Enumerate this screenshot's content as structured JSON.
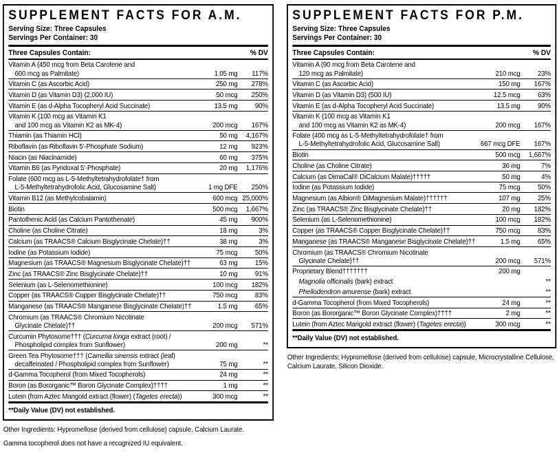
{
  "colors": {
    "ink": "#000000",
    "background": "#ffffff",
    "panel_border": "#000000"
  },
  "panels": [
    {
      "title": "SUPPLEMENT FACTS FOR A.M.",
      "serving_size": "Serving Size: Three Capsules",
      "servings_per_container": "Servings Per Container: 30",
      "contains_label": "Three Capsules Contain:",
      "dv_label": "% DV",
      "rows": [
        {
          "lines": [
            "Vitamin A (450 mcg from Beta Carotene and",
            "600 mcg as Palmitate)"
          ],
          "amount": "1.05 mg",
          "dv": "117%"
        },
        {
          "lines": [
            "Vitamin C (as Ascorbic Acid)"
          ],
          "amount": "250 mg",
          "dv": "278%"
        },
        {
          "lines": [
            "Vitamin D (as Vitamin D3) (2,000 IU)"
          ],
          "amount": "50 mcg",
          "dv": "250%"
        },
        {
          "lines": [
            "Vitamin E (as d-Alpha Tocopheryl Acid Succinate)"
          ],
          "amount": "13.5 mg",
          "dv": "90%"
        },
        {
          "lines": [
            "Vitamin K (100 mcg as Vitamin K1",
            "and 100 mcg as Vitamin K2 as MK-4)"
          ],
          "amount": "200 mcg",
          "dv": "167%"
        },
        {
          "lines": [
            "Thiamin (as Thiamin HCl)"
          ],
          "amount": "50 mg",
          "dv": "4,167%"
        },
        {
          "lines": [
            "Riboflavin (as Riboflavin 5'-Phosphate Sodium)"
          ],
          "amount": "12 mg",
          "dv": "923%"
        },
        {
          "lines": [
            "Niacin (as Niacinamide)"
          ],
          "amount": "60 mg",
          "dv": "375%"
        },
        {
          "lines": [
            "Vitamin B6 (as Pyridoxal 5'-Phosphate)"
          ],
          "amount": "20 mg",
          "dv": "1,176%"
        },
        {
          "lines": [
            "Folate (600 mcg as L-5-Methyltetrahydrofolate† from",
            "L-5-Methyltetrahydrofolic Acid, Glucosamine Salt)"
          ],
          "amount": "1 mg DFE",
          "dv": "250%"
        },
        {
          "lines": [
            "Vitamin B12 (as Methylcobalamin)"
          ],
          "amount": "600 mcg",
          "dv": "25,000%"
        },
        {
          "lines": [
            "Biotin"
          ],
          "amount": "500 mcg",
          "dv": "1,667%"
        },
        {
          "lines": [
            "Pantothenic Acid (as Calcium Pantothenate)"
          ],
          "amount": "45 mg",
          "dv": "900%"
        },
        {
          "lines": [
            "Choline (as Choline Citrate)"
          ],
          "amount": "18 mg",
          "dv": "3%"
        },
        {
          "lines": [
            "Calcium (as TRAACS® Calcium Bisglycinate Chelate)††"
          ],
          "amount": "38 mg",
          "dv": "3%"
        },
        {
          "lines": [
            "Iodine (as Potassium Iodide)"
          ],
          "amount": "75 mcg",
          "dv": "50%"
        },
        {
          "lines": [
            "Magnesium (as TRAACS® Magnesium Bisglycinate Chelate)††"
          ],
          "amount": "63 mg",
          "dv": "15%"
        },
        {
          "lines": [
            "Zinc (as TRAACS® Zinc Bisglycinate Chelate)††"
          ],
          "amount": "10 mg",
          "dv": "91%"
        },
        {
          "lines": [
            "Selenium (as L-Selenomethionine)"
          ],
          "amount": "100 mcg",
          "dv": "182%"
        },
        {
          "lines": [
            "Copper (as TRAACS® Copper Bisglycinate Chelate)††"
          ],
          "amount": "750 mcg",
          "dv": "83%"
        },
        {
          "lines": [
            "Manganese (as TRAACS® Manganese Bisglycinate Chelate)††"
          ],
          "amount": "1.5 mg",
          "dv": "65%"
        },
        {
          "lines": [
            "Chromium (as TRAACS® Chromium Nicotinate",
            "Glycinate Chelate)††"
          ],
          "amount": "200 mcg",
          "dv": "571%"
        },
        {
          "lines": [
            "Curcumin Phytosome††† (*Curcuma longa* extract (root) /",
            "Phospholipid complex from Sunflower)"
          ],
          "amount": "200 mg",
          "dv": "**"
        },
        {
          "lines": [
            "Green Tea Phytosome††† (*Camellia sinensis* extract (leaf)",
            "decaffeinated / Phospholipid complex from Sunflower)"
          ],
          "amount": "75 mg",
          "dv": "**"
        },
        {
          "lines": [
            "d-Gamma Tocopherol (from Mixed Tocopherols)"
          ],
          "amount": "24 mg",
          "dv": "**"
        },
        {
          "lines": [
            "Boron (as Bororganic™ Boron Glycinate Complex)††††"
          ],
          "amount": "1 mg",
          "dv": "**"
        },
        {
          "lines": [
            "Lutein (from Aztec Marigold extract (flower) (*Tagetes erecta*))"
          ],
          "amount": "300 mcg",
          "dv": "**"
        }
      ],
      "footnote": "**Daily Value (DV) not established.",
      "notes": [
        "Other Ingredients: Hypromellose (derived from cellulose) capsule, Calcium Laurate.",
        "Gamma tocopherol does not have a recognized IU equivalent."
      ]
    },
    {
      "title": "SUPPLEMENT FACTS FOR P.M.",
      "serving_size": "Serving Size: Three Capsules",
      "servings_per_container": "Servings Per Container: 30",
      "contains_label": "Three Capsules Contain:",
      "dv_label": "% DV",
      "rows": [
        {
          "lines": [
            "Vitamin A (90 mcg from Beta Carotene and",
            "120 mcg as Palmitate)"
          ],
          "amount": "210 mcg",
          "dv": "23%"
        },
        {
          "lines": [
            "Vitamin C (as Ascorbic Acid)"
          ],
          "amount": "150 mg",
          "dv": "167%"
        },
        {
          "lines": [
            "Vitamin D (as Vitamin D3) (500 IU)"
          ],
          "amount": "12.5 mcg",
          "dv": "63%"
        },
        {
          "lines": [
            "Vitamin E (as d-Alpha Tocopheryl Acid Succinate)"
          ],
          "amount": "13.5 mg",
          "dv": "90%"
        },
        {
          "lines": [
            "Vitamin K (100 mcg as Vitamin K1",
            "and 100 mcg as Vitamin K2 as MK-4)"
          ],
          "amount": "200 mcg",
          "dv": "167%"
        },
        {
          "lines": [
            "Folate (400 mcg as L-5-Methyltetrahydrofolate† from",
            "L-5-Methyltetrahydrofolic Acid, Glucosamine Salt)"
          ],
          "amount": "667 mcg DFE",
          "dv": "167%"
        },
        {
          "lines": [
            "Biotin"
          ],
          "amount": "500 mcg",
          "dv": "1,667%"
        },
        {
          "lines": [
            "Choline (as Choline Citrate)"
          ],
          "amount": "36 mg",
          "dv": "7%"
        },
        {
          "lines": [
            "Calcium (as DimaCal® DiCalcium Malate)†††††"
          ],
          "amount": "50 mg",
          "dv": "4%"
        },
        {
          "lines": [
            "Iodine (as Potassium Iodide)"
          ],
          "amount": "75 mcg",
          "dv": "50%"
        },
        {
          "lines": [
            "Magnesium (as Albion® DiMagnesium Malate)††††††"
          ],
          "amount": "107 mg",
          "dv": "25%"
        },
        {
          "lines": [
            "Zinc (as TRAACS® Zinc Bisglycinate Chelate)††"
          ],
          "amount": "20 mg",
          "dv": "182%"
        },
        {
          "lines": [
            "Selenium (as L-Selenomethionine)"
          ],
          "amount": "100 mcg",
          "dv": "182%"
        },
        {
          "lines": [
            "Copper (as TRAACS® Copper Bisglycinate Chelate)††"
          ],
          "amount": "750 mcg",
          "dv": "83%"
        },
        {
          "lines": [
            "Manganese (as TRAACS® Manganese Bisglycinate Chelate)††"
          ],
          "amount": "1.5 mg",
          "dv": "65%"
        },
        {
          "lines": [
            "Chromium (as TRAACS® Chromium Nicotinate",
            "Glycinate Chelate)††"
          ],
          "amount": "200 mcg",
          "dv": "571%"
        },
        {
          "lines": [
            "Proprietary Blend†††††††"
          ],
          "amount": "200 mg",
          "dv": "",
          "nosep": true
        },
        {
          "lines": [
            "*Magnolia officinalis* (bark) extract"
          ],
          "amount": "",
          "dv": "**",
          "indent": true,
          "nosep": true
        },
        {
          "lines": [
            "*Phellodendron amurense* (bark) extract"
          ],
          "amount": "",
          "dv": "**",
          "indent": true
        },
        {
          "lines": [
            "d-Gamma Tocopherol (from Mixed Tocopherols)"
          ],
          "amount": "24 mg",
          "dv": "**"
        },
        {
          "lines": [
            "Boron (as Bororganic™ Boron Glycinate Complex)††††"
          ],
          "amount": "2 mg",
          "dv": "**"
        },
        {
          "lines": [
            "Lutein (from Aztec Marigold extract (flower) (*Tagetes erecta*))"
          ],
          "amount": "300 mcg",
          "dv": "**"
        }
      ],
      "footnote": "**Daily Value (DV) not established.",
      "notes": [
        "Other Ingredients: Hypromellose (derived from cellulose) capsule, Microcrystalline Cellulose, Calcium Laurate, Silicon Dioxide."
      ]
    }
  ]
}
